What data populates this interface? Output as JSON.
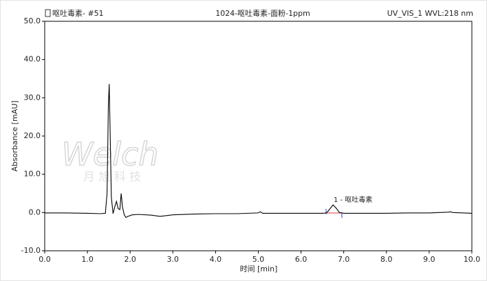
{
  "chart_data": {
    "type": "line",
    "header_left": "呕吐毒素- #51",
    "title": "1024-呕吐毒素-面粉-1ppm",
    "header_right": "UV_VIS_1 WVL:218 nm",
    "y_label": "Absorbance [mAU]",
    "x_label": "时间 [min]",
    "peak_label": "1 - 呕吐毒素",
    "watermark": {
      "logo": "Welch",
      "text": "月 旭 科 技"
    },
    "color": "#000000",
    "x": [
      0.0,
      0.5,
      1.0,
      1.3,
      1.42,
      1.46,
      1.49,
      1.51,
      1.53,
      1.56,
      1.6,
      1.64,
      1.68,
      1.72,
      1.76,
      1.79,
      1.82,
      1.86,
      1.9,
      1.95,
      2.05,
      2.2,
      2.5,
      2.7,
      3.0,
      3.5,
      4.0,
      4.5,
      5.0,
      5.05,
      5.1,
      5.5,
      6.0,
      6.5,
      6.6,
      6.68,
      6.75,
      6.82,
      6.9,
      7.0,
      7.5,
      8.0,
      8.5,
      9.0,
      9.45,
      9.5,
      9.55,
      10.0
    ],
    "values": [
      -0.1,
      -0.1,
      -0.2,
      -0.3,
      -0.2,
      5.0,
      28.0,
      33.6,
      22.0,
      4.0,
      -0.3,
      1.5,
      2.9,
      1.0,
      0.8,
      5.0,
      1.5,
      -0.5,
      -1.3,
      -1.0,
      -0.6,
      -0.5,
      -0.7,
      -1.0,
      -0.6,
      -0.4,
      -0.3,
      -0.3,
      -0.1,
      0.2,
      -0.2,
      -0.2,
      -0.2,
      -0.2,
      -0.1,
      1.0,
      2.0,
      1.2,
      0.0,
      -0.2,
      -0.2,
      -0.2,
      -0.1,
      -0.1,
      0.1,
      0.2,
      0.0,
      -0.2
    ],
    "xlim": [
      0,
      10
    ],
    "ylim": [
      -10,
      50
    ],
    "xticks": [
      {
        "value": 0,
        "label": "0.0"
      },
      {
        "value": 1,
        "label": "1.0"
      },
      {
        "value": 2,
        "label": "2.0"
      },
      {
        "value": 3,
        "label": "3.0"
      },
      {
        "value": 4,
        "label": "4.0"
      },
      {
        "value": 5,
        "label": "5.0"
      },
      {
        "value": 6,
        "label": "6.0"
      },
      {
        "value": 7,
        "label": "7.0"
      },
      {
        "value": 8,
        "label": "8.0"
      },
      {
        "value": 9,
        "label": "9.0"
      },
      {
        "value": 10,
        "label": "10.0"
      }
    ],
    "yticks": [
      {
        "value": -10,
        "label": "-10.0"
      },
      {
        "value": 0,
        "label": "0.0"
      },
      {
        "value": 10,
        "label": "10.0"
      },
      {
        "value": 20,
        "label": "20.0"
      },
      {
        "value": 30,
        "label": "30.0"
      },
      {
        "value": 40,
        "label": "40.0"
      },
      {
        "value": 50,
        "label": "50.0"
      }
    ]
  }
}
